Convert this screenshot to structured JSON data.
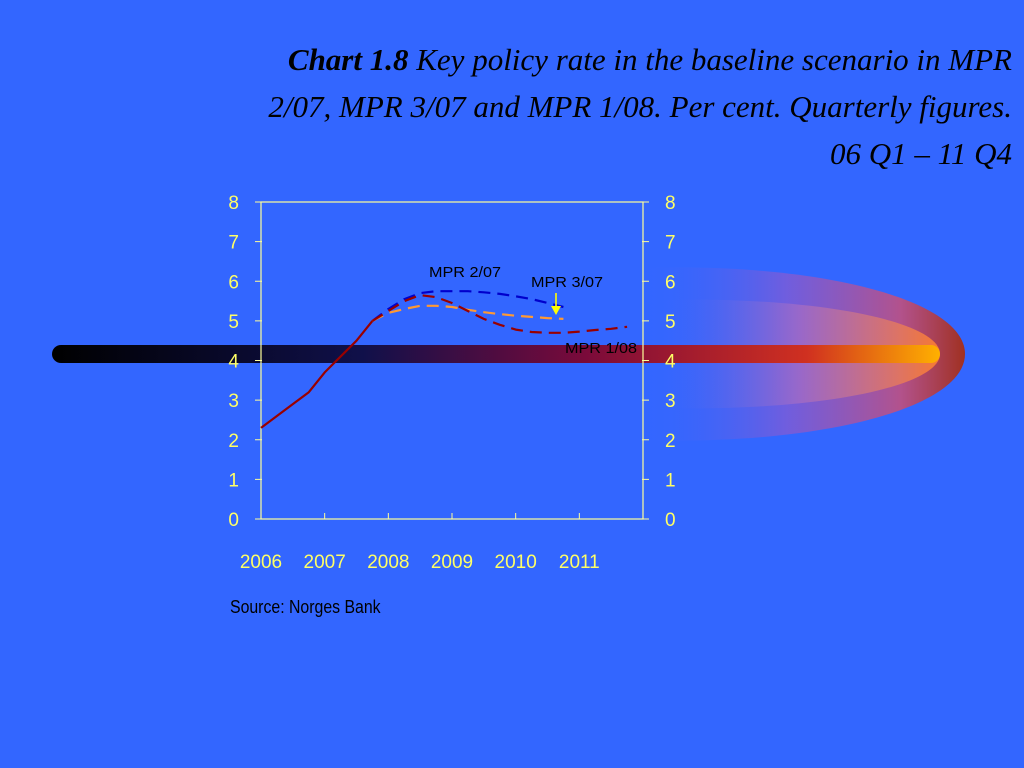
{
  "title": {
    "lead": "Chart 1.8",
    "line1": " Key policy rate in the baseline scenario in MPR",
    "line2": "2/07, MPR 3/07 and MPR 1/08. Per cent. Quarterly figures.",
    "line3": "06 Q1 – 11 Q4"
  },
  "source": "Source: Norges Bank",
  "colors": {
    "background": "#3366FF",
    "axis": "#FFFF99",
    "tick_label": "#FFFF66",
    "mpr_2_07": "#0000CC",
    "mpr_3_07": "#FF9933",
    "mpr_1_08": "#990000",
    "history": "#990000"
  },
  "chart_data": {
    "type": "line",
    "title": "Key policy rate in the baseline scenario in MPR 2/07, MPR 3/07 and MPR 1/08. Per cent. Quarterly figures. 06 Q1 – 11 Q4",
    "xlabel": "",
    "ylabel": "",
    "x_ticks": [
      "2006",
      "2007",
      "2008",
      "2009",
      "2010",
      "2011"
    ],
    "xlim": [
      2006.0,
      2012.0
    ],
    "ylim": [
      0,
      8
    ],
    "y_ticks_left": [
      "0",
      "1",
      "2",
      "3",
      "4",
      "5",
      "6",
      "7",
      "8"
    ],
    "y_ticks_right": [
      "0",
      "1",
      "2",
      "3",
      "4",
      "5",
      "6",
      "7",
      "8"
    ],
    "grid": false,
    "series": [
      {
        "name": "",
        "style": "solid",
        "color": "#990000",
        "x": [
          2006.0,
          2006.25,
          2006.5,
          2006.75,
          2007.0,
          2007.25,
          2007.5,
          2007.75
        ],
        "y": [
          2.3,
          2.6,
          2.9,
          3.2,
          3.7,
          4.1,
          4.5,
          5.0
        ]
      },
      {
        "name": "MPR 2/07",
        "style": "dashed",
        "color": "#0000CC",
        "x": [
          2007.75,
          2008.0,
          2008.25,
          2008.5,
          2008.75,
          2009.0,
          2009.25,
          2009.5,
          2009.75,
          2010.0,
          2010.25,
          2010.5,
          2010.75
        ],
        "y": [
          5.0,
          5.3,
          5.55,
          5.7,
          5.75,
          5.75,
          5.75,
          5.72,
          5.68,
          5.62,
          5.55,
          5.45,
          5.35
        ]
      },
      {
        "name": "MPR 3/07",
        "style": "dashed",
        "color": "#FF9933",
        "x": [
          2007.75,
          2008.0,
          2008.25,
          2008.5,
          2008.75,
          2009.0,
          2009.25,
          2009.5,
          2009.75,
          2010.0,
          2010.25,
          2010.5,
          2010.75
        ],
        "y": [
          5.0,
          5.2,
          5.3,
          5.38,
          5.38,
          5.35,
          5.28,
          5.22,
          5.17,
          5.13,
          5.1,
          5.07,
          5.05
        ]
      },
      {
        "name": "MPR 1/08",
        "style": "dashed",
        "color": "#990000",
        "x": [
          2007.75,
          2008.0,
          2008.25,
          2008.5,
          2008.75,
          2009.0,
          2009.25,
          2009.5,
          2009.75,
          2010.0,
          2010.25,
          2010.5,
          2010.75,
          2011.0,
          2011.25,
          2011.5,
          2011.75
        ],
        "y": [
          5.0,
          5.25,
          5.5,
          5.65,
          5.6,
          5.45,
          5.25,
          5.05,
          4.9,
          4.78,
          4.72,
          4.7,
          4.7,
          4.73,
          4.77,
          4.8,
          4.85
        ]
      }
    ],
    "annotations": [
      {
        "text": "MPR 2/07",
        "series": "MPR 2/07"
      },
      {
        "text": "MPR 3/07",
        "series": "MPR 3/07",
        "arrow": true
      },
      {
        "text": "MPR 1/08",
        "series": "MPR 1/08"
      }
    ]
  }
}
